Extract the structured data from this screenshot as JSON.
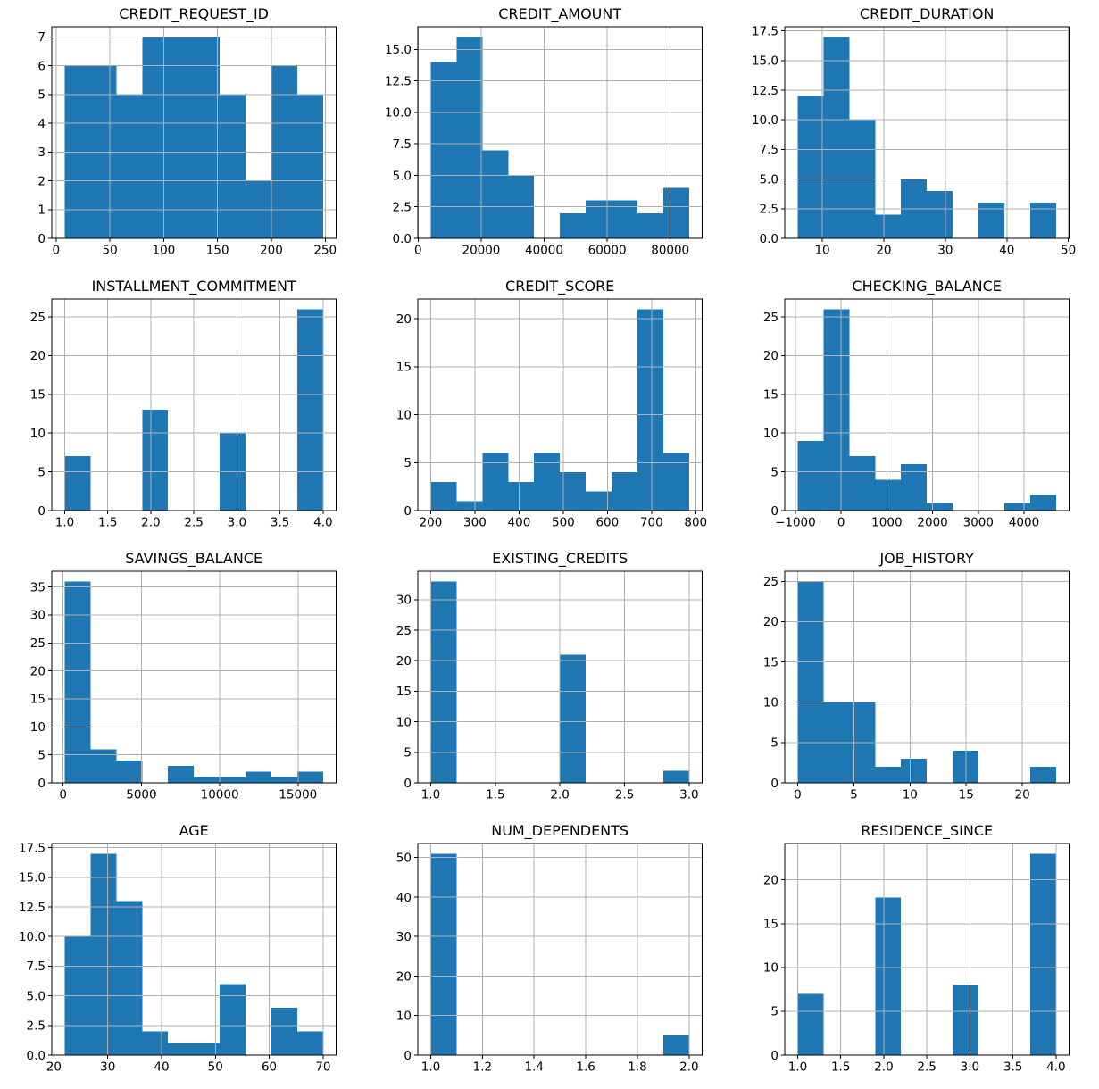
{
  "figure": {
    "background": "#ffffff",
    "bar_color": "#1f77b4",
    "grid_color": "#b0b0b0",
    "spine_color": "#000000",
    "text_color": "#000000",
    "rows": 4,
    "columns": 3,
    "sample_size_per_plot": 56
  },
  "chart_data": [
    {
      "type": "bar",
      "subtype": "histogram",
      "title": "CREDIT_REQUEST_ID",
      "bin_start": 8,
      "bin_end": 248,
      "bin_count": 10,
      "values": [
        6,
        6,
        5,
        7,
        7,
        7,
        5,
        2,
        6,
        5
      ],
      "xlim": [
        -4,
        260
      ],
      "ylim": [
        0,
        7.35
      ],
      "xtick_values": [
        0,
        50,
        100,
        150,
        200,
        250
      ],
      "xtick_labels": [
        "0",
        "50",
        "100",
        "150",
        "200",
        "250"
      ],
      "ytick_values": [
        0,
        1,
        2,
        3,
        4,
        5,
        6,
        7
      ],
      "ytick_labels": [
        "0",
        "1",
        "2",
        "3",
        "4",
        "5",
        "6",
        "7"
      ],
      "grid": true
    },
    {
      "type": "bar",
      "subtype": "histogram",
      "title": "CREDIT_AMOUNT",
      "bin_start": 4000,
      "bin_end": 86000,
      "bin_count": 10,
      "values": [
        14,
        16,
        7,
        5,
        0,
        2,
        3,
        3,
        2,
        4
      ],
      "xlim": [
        -100,
        90100
      ],
      "ylim": [
        0,
        16.8
      ],
      "xtick_values": [
        0,
        20000,
        40000,
        60000,
        80000
      ],
      "xtick_labels": [
        "0",
        "20000",
        "40000",
        "60000",
        "80000"
      ],
      "ytick_values": [
        0,
        2.5,
        5,
        7.5,
        10,
        12.5,
        15
      ],
      "ytick_labels": [
        "0.0",
        "2.5",
        "5.0",
        "7.5",
        "10.0",
        "12.5",
        "15.0"
      ],
      "grid": true
    },
    {
      "type": "bar",
      "subtype": "histogram",
      "title": "CREDIT_DURATION",
      "bin_start": 6,
      "bin_end": 48,
      "bin_count": 10,
      "values": [
        12,
        17,
        10,
        2,
        5,
        4,
        0,
        3,
        0,
        3
      ],
      "xlim": [
        3.9,
        50.1
      ],
      "ylim": [
        0,
        17.85
      ],
      "xtick_values": [
        10,
        20,
        30,
        40,
        50
      ],
      "xtick_labels": [
        "10",
        "20",
        "30",
        "40",
        "50"
      ],
      "ytick_values": [
        0,
        2.5,
        5,
        7.5,
        10,
        12.5,
        15,
        17.5
      ],
      "ytick_labels": [
        "0.0",
        "2.5",
        "5.0",
        "7.5",
        "10.0",
        "12.5",
        "15.0",
        "17.5"
      ],
      "grid": true
    },
    {
      "type": "bar",
      "subtype": "histogram",
      "title": "INSTALLMENT_COMMITMENT",
      "bin_start": 1,
      "bin_end": 4,
      "bin_count": 10,
      "values": [
        7,
        0,
        0,
        13,
        0,
        0,
        10,
        0,
        0,
        26
      ],
      "xlim": [
        0.85,
        4.15
      ],
      "ylim": [
        0,
        27.3
      ],
      "xtick_values": [
        1,
        1.5,
        2,
        2.5,
        3,
        3.5,
        4
      ],
      "xtick_labels": [
        "1.0",
        "1.5",
        "2.0",
        "2.5",
        "3.0",
        "3.5",
        "4.0"
      ],
      "ytick_values": [
        0,
        5,
        10,
        15,
        20,
        25
      ],
      "ytick_labels": [
        "0",
        "5",
        "10",
        "15",
        "20",
        "25"
      ],
      "grid": true
    },
    {
      "type": "bar",
      "subtype": "histogram",
      "title": "CREDIT_SCORE",
      "bin_start": 200,
      "bin_end": 785,
      "bin_count": 10,
      "values": [
        3,
        1,
        6,
        3,
        6,
        4,
        2,
        4,
        21,
        6
      ],
      "xlim": [
        170.75,
        814.25
      ],
      "ylim": [
        0,
        22.05
      ],
      "xtick_values": [
        200,
        300,
        400,
        500,
        600,
        700,
        800
      ],
      "xtick_labels": [
        "200",
        "300",
        "400",
        "500",
        "600",
        "700",
        "800"
      ],
      "ytick_values": [
        0,
        5,
        10,
        15,
        20
      ],
      "ytick_labels": [
        "0",
        "5",
        "10",
        "15",
        "20"
      ],
      "grid": true
    },
    {
      "type": "bar",
      "subtype": "histogram",
      "title": "CHECKING_BALANCE",
      "bin_start": -950,
      "bin_end": 4700,
      "bin_count": 10,
      "values": [
        9,
        26,
        7,
        4,
        6,
        1,
        0,
        0,
        1,
        2
      ],
      "xlim": [
        -1232.5,
        4982.5
      ],
      "ylim": [
        0,
        27.3
      ],
      "xtick_values": [
        -1000,
        0,
        1000,
        2000,
        3000,
        4000
      ],
      "xtick_labels": [
        "−1000",
        "0",
        "1000",
        "2000",
        "3000",
        "4000"
      ],
      "ytick_values": [
        0,
        5,
        10,
        15,
        20,
        25
      ],
      "ytick_labels": [
        "0",
        "5",
        "10",
        "15",
        "20",
        "25"
      ],
      "grid": true
    },
    {
      "type": "bar",
      "subtype": "histogram",
      "title": "SAVINGS_BALANCE",
      "bin_start": 100,
      "bin_end": 16600,
      "bin_count": 10,
      "values": [
        36,
        6,
        4,
        0,
        3,
        1,
        1,
        2,
        1,
        2
      ],
      "xlim": [
        -725,
        17425
      ],
      "ylim": [
        0,
        37.8
      ],
      "xtick_values": [
        0,
        5000,
        10000,
        15000
      ],
      "xtick_labels": [
        "0",
        "5000",
        "10000",
        "15000"
      ],
      "ytick_values": [
        0,
        5,
        10,
        15,
        20,
        25,
        30,
        35
      ],
      "ytick_labels": [
        "0",
        "5",
        "10",
        "15",
        "20",
        "25",
        "30",
        "35"
      ],
      "grid": true
    },
    {
      "type": "bar",
      "subtype": "histogram",
      "title": "EXISTING_CREDITS",
      "bin_start": 1,
      "bin_end": 3,
      "bin_count": 10,
      "values": [
        33,
        0,
        0,
        0,
        0,
        21,
        0,
        0,
        0,
        2
      ],
      "xlim": [
        0.9,
        3.1
      ],
      "ylim": [
        0,
        34.65
      ],
      "xtick_values": [
        1,
        1.5,
        2,
        2.5,
        3
      ],
      "xtick_labels": [
        "1.0",
        "1.5",
        "2.0",
        "2.5",
        "3.0"
      ],
      "ytick_values": [
        0,
        5,
        10,
        15,
        20,
        25,
        30
      ],
      "ytick_labels": [
        "0",
        "5",
        "10",
        "15",
        "20",
        "25",
        "30"
      ],
      "grid": true
    },
    {
      "type": "bar",
      "subtype": "histogram",
      "title": "JOB_HISTORY",
      "bin_start": 0,
      "bin_end": 23,
      "bin_count": 10,
      "values": [
        25,
        10,
        10,
        2,
        3,
        0,
        4,
        0,
        0,
        2
      ],
      "xlim": [
        -1.15,
        24.15
      ],
      "ylim": [
        0,
        26.25
      ],
      "xtick_values": [
        0,
        5,
        10,
        15,
        20
      ],
      "xtick_labels": [
        "0",
        "5",
        "10",
        "15",
        "20"
      ],
      "ytick_values": [
        0,
        5,
        10,
        15,
        20,
        25
      ],
      "ytick_labels": [
        "0",
        "5",
        "10",
        "15",
        "20",
        "25"
      ],
      "grid": true
    },
    {
      "type": "bar",
      "subtype": "histogram",
      "title": "AGE",
      "bin_start": 22,
      "bin_end": 70,
      "bin_count": 10,
      "values": [
        10,
        17,
        13,
        2,
        1,
        1,
        6,
        0,
        4,
        2
      ],
      "xlim": [
        19.6,
        72.4
      ],
      "ylim": [
        0,
        17.85
      ],
      "xtick_values": [
        20,
        30,
        40,
        50,
        60,
        70
      ],
      "xtick_labels": [
        "20",
        "30",
        "40",
        "50",
        "60",
        "70"
      ],
      "ytick_values": [
        0,
        2.5,
        5,
        7.5,
        10,
        12.5,
        15,
        17.5
      ],
      "ytick_labels": [
        "0.0",
        "2.5",
        "5.0",
        "7.5",
        "10.0",
        "12.5",
        "15.0",
        "17.5"
      ],
      "grid": true
    },
    {
      "type": "bar",
      "subtype": "histogram",
      "title": "NUM_DEPENDENTS",
      "bin_start": 1,
      "bin_end": 2,
      "bin_count": 10,
      "values": [
        51,
        0,
        0,
        0,
        0,
        0,
        0,
        0,
        0,
        5
      ],
      "xlim": [
        0.95,
        2.05
      ],
      "ylim": [
        0,
        53.55
      ],
      "xtick_values": [
        1,
        1.2,
        1.4,
        1.6,
        1.8,
        2
      ],
      "xtick_labels": [
        "1.0",
        "1.2",
        "1.4",
        "1.6",
        "1.8",
        "2.0"
      ],
      "ytick_values": [
        0,
        10,
        20,
        30,
        40,
        50
      ],
      "ytick_labels": [
        "0",
        "10",
        "20",
        "30",
        "40",
        "50"
      ],
      "grid": true
    },
    {
      "type": "bar",
      "subtype": "histogram",
      "title": "RESIDENCE_SINCE",
      "bin_start": 1,
      "bin_end": 4,
      "bin_count": 10,
      "values": [
        7,
        0,
        0,
        18,
        0,
        0,
        8,
        0,
        0,
        23
      ],
      "xlim": [
        0.85,
        4.15
      ],
      "ylim": [
        0,
        24.15
      ],
      "xtick_values": [
        1,
        1.5,
        2,
        2.5,
        3,
        3.5,
        4
      ],
      "xtick_labels": [
        "1.0",
        "1.5",
        "2.0",
        "2.5",
        "3.0",
        "3.5",
        "4.0"
      ],
      "ytick_values": [
        0,
        5,
        10,
        15,
        20
      ],
      "ytick_labels": [
        "0",
        "5",
        "10",
        "15",
        "20"
      ],
      "grid": true
    }
  ]
}
